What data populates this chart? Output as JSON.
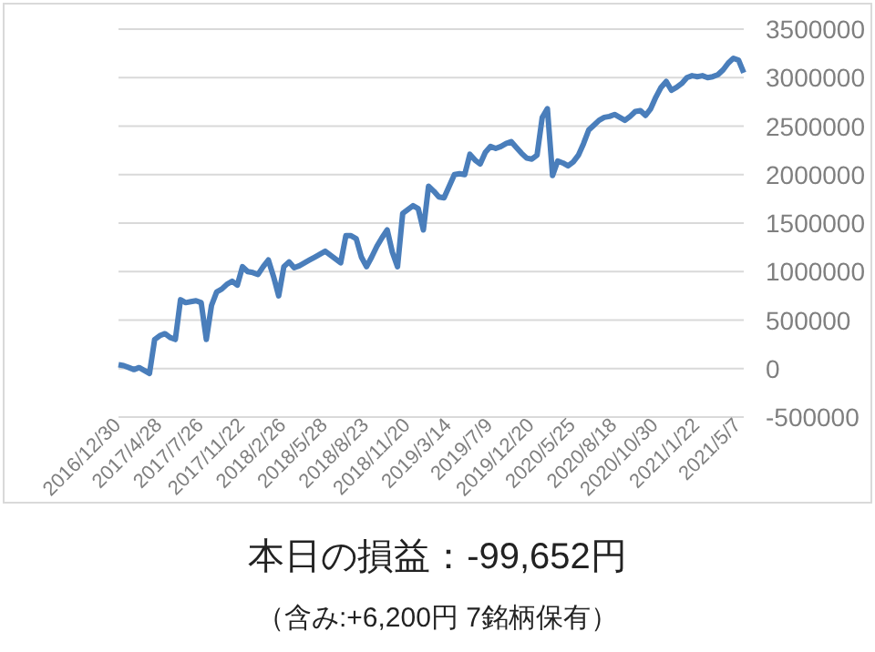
{
  "chart_data": {
    "type": "line",
    "categories": [
      "2016/12/30",
      null,
      null,
      null,
      null,
      null,
      null,
      null,
      "2017/4/28",
      null,
      null,
      null,
      null,
      null,
      null,
      null,
      "2017/7/26",
      null,
      null,
      null,
      null,
      null,
      null,
      null,
      "2017/11/22",
      null,
      null,
      null,
      null,
      null,
      null,
      null,
      "2018/2/26",
      null,
      null,
      null,
      null,
      null,
      null,
      null,
      "2018/5/28",
      null,
      null,
      null,
      null,
      null,
      null,
      null,
      "2018/8/23",
      null,
      null,
      null,
      null,
      null,
      null,
      null,
      "2018/11/20",
      null,
      null,
      null,
      null,
      null,
      null,
      null,
      "2019/3/14",
      null,
      null,
      null,
      null,
      null,
      null,
      null,
      "2019/7/9",
      null,
      null,
      null,
      null,
      null,
      null,
      null,
      "2019/12/20",
      null,
      null,
      null,
      null,
      null,
      null,
      null,
      "2020/5/25",
      null,
      null,
      null,
      null,
      null,
      null,
      null,
      "2020/8/18",
      null,
      null,
      null,
      null,
      null,
      null,
      null,
      "2020/10/30",
      null,
      null,
      null,
      null,
      null,
      null,
      null,
      "2021/1/22",
      null,
      null,
      null,
      null,
      null,
      null,
      null,
      "2021/5/7",
      null
    ],
    "series": [
      {
        "color": "#4a7ebb",
        "values": [
          40000,
          30000,
          10000,
          -10000,
          10000,
          -20000,
          -50000,
          300000,
          340000,
          360000,
          320000,
          300000,
          710000,
          680000,
          690000,
          700000,
          680000,
          300000,
          650000,
          790000,
          820000,
          870000,
          900000,
          860000,
          1050000,
          1000000,
          990000,
          970000,
          1050000,
          1120000,
          950000,
          750000,
          1050000,
          1100000,
          1040000,
          1060000,
          1090000,
          1120000,
          1150000,
          1180000,
          1210000,
          1170000,
          1130000,
          1090000,
          1370000,
          1370000,
          1340000,
          1150000,
          1050000,
          1150000,
          1260000,
          1350000,
          1430000,
          1200000,
          1050000,
          1600000,
          1640000,
          1680000,
          1650000,
          1430000,
          1880000,
          1830000,
          1770000,
          1760000,
          1880000,
          2000000,
          2010000,
          2000000,
          2210000,
          2150000,
          2110000,
          2230000,
          2290000,
          2270000,
          2290000,
          2320000,
          2340000,
          2280000,
          2220000,
          2170000,
          2160000,
          2200000,
          2590000,
          2680000,
          1990000,
          2140000,
          2120000,
          2090000,
          2130000,
          2200000,
          2320000,
          2460000,
          2510000,
          2560000,
          2590000,
          2600000,
          2620000,
          2590000,
          2560000,
          2600000,
          2650000,
          2660000,
          2610000,
          2680000,
          2800000,
          2900000,
          2960000,
          2870000,
          2900000,
          2940000,
          3000000,
          3020000,
          3010000,
          3020000,
          3000000,
          3010000,
          3030000,
          3080000,
          3150000,
          3200000,
          3180000,
          3050000
        ]
      }
    ],
    "ylim": [
      -500000,
      3500000
    ],
    "yticks": [
      -500000,
      0,
      500000,
      1000000,
      1500000,
      2000000,
      2500000,
      3000000,
      3500000
    ],
    "grid": "y",
    "marker": "none",
    "line_style": "solid",
    "annotations": [
      "本日の損益：-99,652円",
      "（含み:+6,200円  7銘柄保有）"
    ]
  }
}
